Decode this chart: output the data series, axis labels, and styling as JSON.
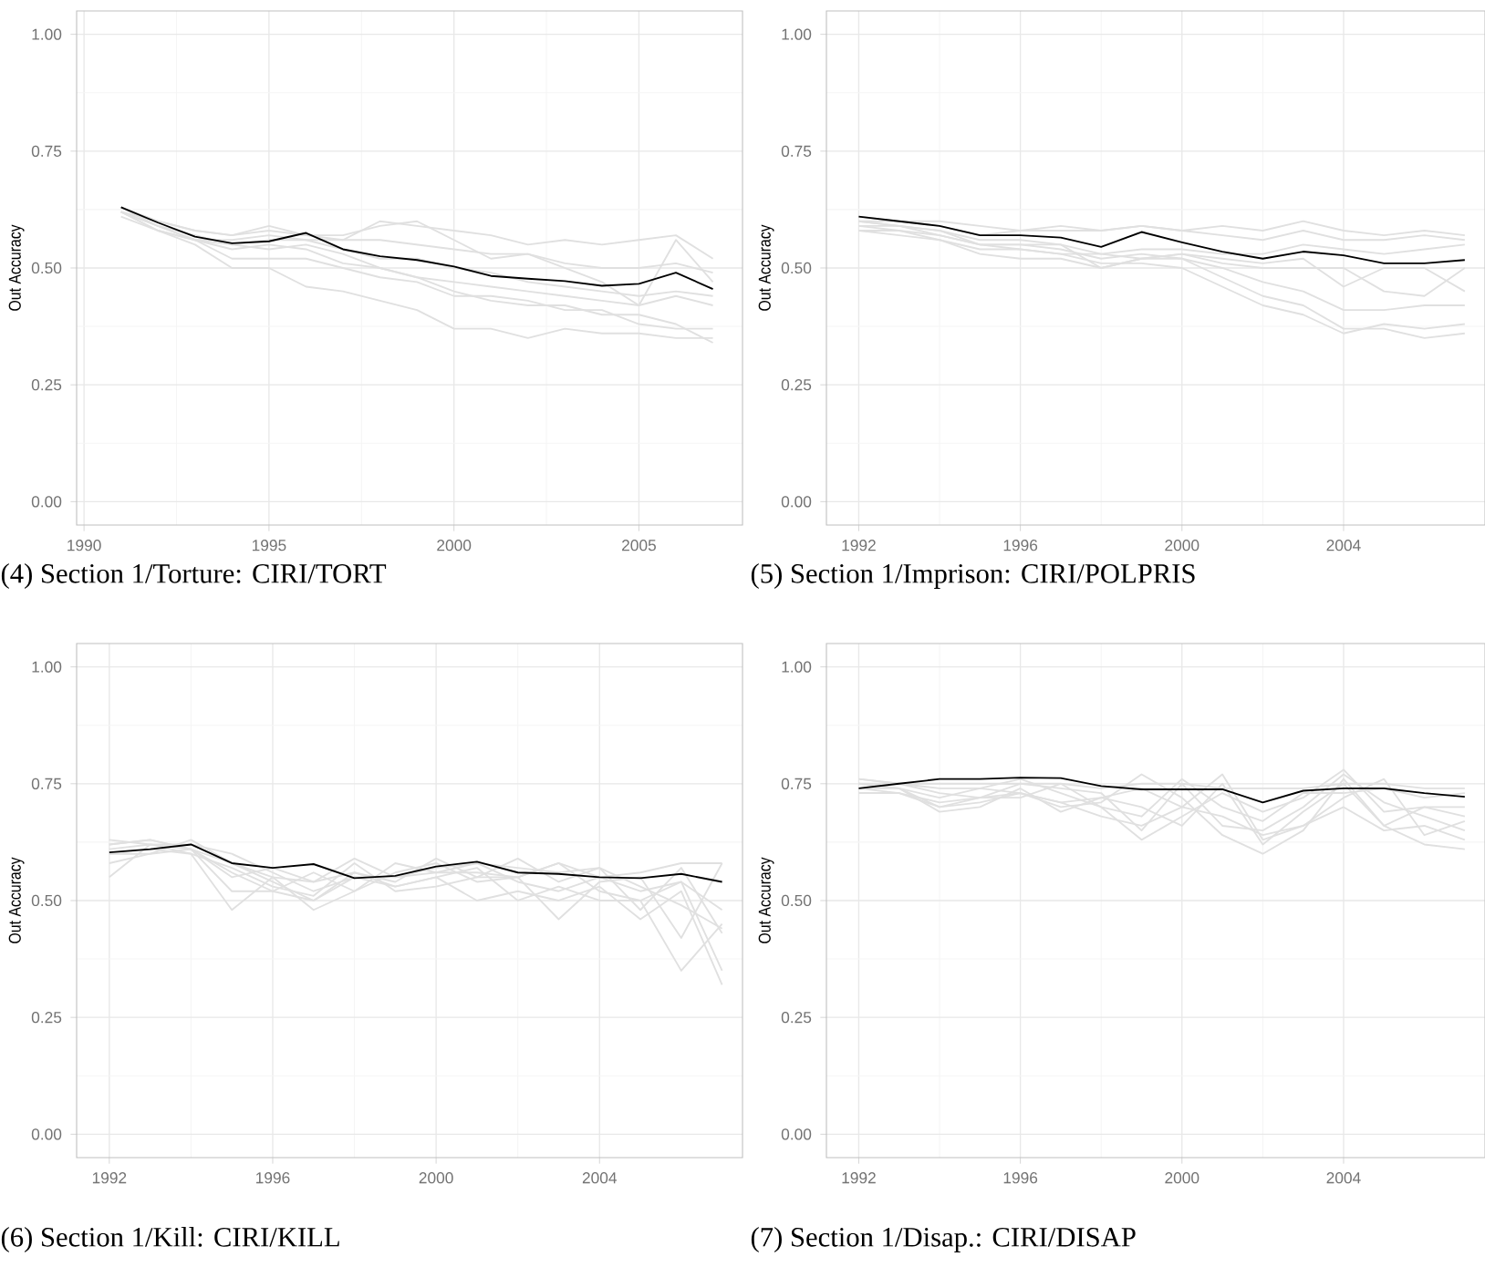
{
  "chart_data": [
    {
      "type": "line",
      "title": "(4) Section 1/Torture: CIRI/TORT",
      "ylabel": "Out Accuracy",
      "grid": true,
      "xlim": [
        1989.8,
        2007.8
      ],
      "ylim": [
        -0.05,
        1.05
      ],
      "xticks": [
        1990,
        1995,
        2000,
        2005
      ],
      "yticks": [
        {
          "value": 0,
          "label": "0.00"
        },
        {
          "value": 0.25,
          "label": "0.25"
        },
        {
          "value": 0.5,
          "label": "0.50"
        },
        {
          "value": 0.75,
          "label": "0.75"
        },
        {
          "value": 1,
          "label": "1.00"
        }
      ],
      "x": [
        1991,
        1992,
        1993,
        1994,
        1995,
        1996,
        1997,
        1998,
        1999,
        2000,
        2001,
        2002,
        2003,
        2004,
        2005,
        2006,
        2007
      ],
      "series": [
        {
          "color": "#e0e0e0",
          "values": [
            0.62,
            0.6,
            0.58,
            0.57,
            0.58,
            0.57,
            0.56,
            0.6,
            0.59,
            0.58,
            0.57,
            0.55,
            0.56,
            0.55,
            0.56,
            0.57,
            0.52
          ]
        },
        {
          "color": "#e0e0e0",
          "values": [
            0.63,
            0.59,
            0.57,
            0.55,
            0.54,
            0.55,
            0.53,
            0.5,
            0.48,
            0.45,
            0.43,
            0.42,
            0.42,
            0.4,
            0.4,
            0.38,
            0.34
          ]
        },
        {
          "color": "#e0e0e0",
          "values": [
            0.61,
            0.58,
            0.55,
            0.5,
            0.5,
            0.46,
            0.45,
            0.43,
            0.41,
            0.37,
            0.37,
            0.35,
            0.37,
            0.36,
            0.36,
            0.35,
            0.35
          ]
        },
        {
          "color": "#e0e0e0",
          "values": [
            0.62,
            0.59,
            0.56,
            0.56,
            0.57,
            0.56,
            0.56,
            0.56,
            0.55,
            0.54,
            0.53,
            0.53,
            0.51,
            0.5,
            0.5,
            0.51,
            0.49
          ]
        },
        {
          "color": "#e0e0e0",
          "values": [
            0.62,
            0.58,
            0.56,
            0.52,
            0.52,
            0.52,
            0.5,
            0.48,
            0.47,
            0.44,
            0.44,
            0.43,
            0.41,
            0.41,
            0.38,
            0.37,
            0.37
          ]
        },
        {
          "color": "#e0e0e0",
          "values": [
            0.63,
            0.6,
            0.58,
            0.57,
            0.59,
            0.57,
            0.57,
            0.59,
            0.6,
            0.56,
            0.52,
            0.53,
            0.5,
            0.47,
            0.42,
            0.56,
            0.47
          ]
        },
        {
          "color": "#e0e0e0",
          "values": [
            0.62,
            0.58,
            0.56,
            0.54,
            0.55,
            0.54,
            0.51,
            0.5,
            0.48,
            0.47,
            0.46,
            0.45,
            0.44,
            0.43,
            0.42,
            0.44,
            0.42
          ]
        },
        {
          "color": "#e0e0e0",
          "values": [
            0.62,
            0.59,
            0.56,
            0.55,
            0.56,
            0.56,
            0.54,
            0.52,
            0.52,
            0.5,
            0.49,
            0.47,
            0.46,
            0.45,
            0.44,
            0.45,
            0.44
          ]
        },
        {
          "color": "#000000",
          "values": [
            0.63,
            0.597,
            0.567,
            0.553,
            0.557,
            0.575,
            0.54,
            0.525,
            0.517,
            0.503,
            0.483,
            0.477,
            0.472,
            0.462,
            0.466,
            0.49,
            0.455
          ]
        }
      ]
    },
    {
      "type": "line",
      "title": "(5) Section 1/Imprison: CIRI/POLPRIS",
      "ylabel": "Out Accuracy",
      "grid": true,
      "xlim": [
        1991.2,
        2007.5
      ],
      "ylim": [
        -0.05,
        1.05
      ],
      "xticks": [
        1992,
        1996,
        2000,
        2004
      ],
      "yticks": [
        {
          "value": 0,
          "label": "0.00"
        },
        {
          "value": 0.25,
          "label": "0.25"
        },
        {
          "value": 0.5,
          "label": "0.50"
        },
        {
          "value": 0.75,
          "label": "0.75"
        },
        {
          "value": 1,
          "label": "1.00"
        }
      ],
      "x": [
        1992,
        1993,
        1994,
        1995,
        1996,
        1997,
        1998,
        1999,
        2000,
        2001,
        2002,
        2003,
        2004,
        2005,
        2006,
        2007
      ],
      "series": [
        {
          "color": "#e0e0e0",
          "values": [
            0.6,
            0.6,
            0.6,
            0.59,
            0.58,
            0.58,
            0.58,
            0.59,
            0.58,
            0.59,
            0.58,
            0.6,
            0.58,
            0.57,
            0.58,
            0.57
          ]
        },
        {
          "color": "#e0e0e0",
          "values": [
            0.58,
            0.57,
            0.56,
            0.53,
            0.52,
            0.52,
            0.5,
            0.52,
            0.52,
            0.48,
            0.44,
            0.42,
            0.37,
            0.37,
            0.35,
            0.36
          ]
        },
        {
          "color": "#e0e0e0",
          "values": [
            0.59,
            0.59,
            0.57,
            0.55,
            0.54,
            0.53,
            0.51,
            0.51,
            0.5,
            0.46,
            0.42,
            0.4,
            0.36,
            0.38,
            0.37,
            0.38
          ]
        },
        {
          "color": "#e0e0e0",
          "values": [
            0.6,
            0.59,
            0.58,
            0.55,
            0.55,
            0.54,
            0.52,
            0.53,
            0.52,
            0.5,
            0.47,
            0.45,
            0.41,
            0.41,
            0.42,
            0.42
          ]
        },
        {
          "color": "#e0e0e0",
          "values": [
            0.59,
            0.58,
            0.57,
            0.55,
            0.55,
            0.55,
            0.5,
            0.52,
            0.53,
            0.52,
            0.51,
            0.52,
            0.46,
            0.5,
            0.5,
            0.45
          ]
        },
        {
          "color": "#e0e0e0",
          "values": [
            0.6,
            0.59,
            0.58,
            0.56,
            0.56,
            0.55,
            0.53,
            0.54,
            0.54,
            0.53,
            0.53,
            0.55,
            0.54,
            0.53,
            0.54,
            0.55
          ]
        },
        {
          "color": "#e0e0e0",
          "values": [
            0.58,
            0.58,
            0.56,
            0.54,
            0.54,
            0.53,
            0.53,
            0.52,
            0.53,
            0.51,
            0.5,
            0.5,
            0.5,
            0.45,
            0.44,
            0.5
          ]
        },
        {
          "color": "#e0e0e0",
          "values": [
            0.61,
            0.6,
            0.59,
            0.57,
            0.58,
            0.59,
            0.58,
            0.59,
            0.58,
            0.57,
            0.56,
            0.58,
            0.56,
            0.56,
            0.57,
            0.56
          ]
        },
        {
          "color": "#000000",
          "values": [
            0.61,
            0.6,
            0.59,
            0.57,
            0.57,
            0.565,
            0.545,
            0.577,
            0.555,
            0.535,
            0.52,
            0.535,
            0.527,
            0.51,
            0.51,
            0.517
          ]
        }
      ]
    },
    {
      "type": "line",
      "title": "(6) Section 1/Kill: CIRI/KILL",
      "ylabel": "Out Accuracy",
      "grid": true,
      "xlim": [
        1991.2,
        2007.5
      ],
      "ylim": [
        -0.05,
        1.05
      ],
      "xticks": [
        1992,
        1996,
        2000,
        2004
      ],
      "yticks": [
        {
          "value": 0,
          "label": "0.00"
        },
        {
          "value": 0.25,
          "label": "0.25"
        },
        {
          "value": 0.5,
          "label": "0.50"
        },
        {
          "value": 0.75,
          "label": "0.75"
        },
        {
          "value": 1,
          "label": "1.00"
        }
      ],
      "x": [
        1992,
        1993,
        1994,
        1995,
        1996,
        1997,
        1998,
        1999,
        2000,
        2001,
        2002,
        2003,
        2004,
        2005,
        2006,
        2007
      ],
      "series": [
        {
          "color": "#e0e0e0",
          "values": [
            0.55,
            0.62,
            0.61,
            0.52,
            0.52,
            0.5,
            0.55,
            0.53,
            0.55,
            0.5,
            0.52,
            0.5,
            0.53,
            0.46,
            0.52,
            0.32
          ]
        },
        {
          "color": "#e0e0e0",
          "values": [
            0.62,
            0.63,
            0.61,
            0.58,
            0.55,
            0.48,
            0.52,
            0.58,
            0.56,
            0.56,
            0.55,
            0.58,
            0.52,
            0.5,
            0.35,
            0.45
          ]
        },
        {
          "color": "#e0e0e0",
          "values": [
            0.6,
            0.61,
            0.6,
            0.48,
            0.55,
            0.54,
            0.56,
            0.54,
            0.59,
            0.55,
            0.55,
            0.46,
            0.54,
            0.55,
            0.42,
            0.58
          ]
        },
        {
          "color": "#e0e0e0",
          "values": [
            0.63,
            0.62,
            0.62,
            0.6,
            0.56,
            0.52,
            0.55,
            0.55,
            0.57,
            0.58,
            0.57,
            0.56,
            0.57,
            0.48,
            0.57,
            0.43
          ]
        },
        {
          "color": "#e0e0e0",
          "values": [
            0.58,
            0.6,
            0.63,
            0.58,
            0.54,
            0.5,
            0.56,
            0.53,
            0.55,
            0.57,
            0.5,
            0.53,
            0.5,
            0.5,
            0.54,
            0.35
          ]
        },
        {
          "color": "#e0e0e0",
          "values": [
            0.62,
            0.63,
            0.61,
            0.56,
            0.52,
            0.56,
            0.52,
            0.56,
            0.58,
            0.54,
            0.55,
            0.58,
            0.55,
            0.52,
            0.54,
            0.48
          ]
        },
        {
          "color": "#e0e0e0",
          "values": [
            0.6,
            0.6,
            0.61,
            0.55,
            0.57,
            0.54,
            0.59,
            0.55,
            0.56,
            0.58,
            0.54,
            0.52,
            0.55,
            0.56,
            0.58,
            0.58
          ]
        },
        {
          "color": "#e0e0e0",
          "values": [
            0.61,
            0.62,
            0.6,
            0.57,
            0.53,
            0.51,
            0.58,
            0.52,
            0.53,
            0.55,
            0.59,
            0.54,
            0.57,
            0.53,
            0.49,
            0.44
          ]
        },
        {
          "color": "#000000",
          "values": [
            0.603,
            0.61,
            0.62,
            0.58,
            0.57,
            0.578,
            0.548,
            0.553,
            0.573,
            0.583,
            0.56,
            0.557,
            0.55,
            0.548,
            0.557,
            0.54
          ]
        }
      ]
    },
    {
      "type": "line",
      "title": "(7) Section 1/Disap.: CIRI/DISAP",
      "ylabel": "Out Accuracy",
      "grid": true,
      "xlim": [
        1991.2,
        2007.5
      ],
      "ylim": [
        -0.05,
        1.05
      ],
      "xticks": [
        1992,
        1996,
        2000,
        2004
      ],
      "yticks": [
        {
          "value": 0,
          "label": "0.00"
        },
        {
          "value": 0.25,
          "label": "0.25"
        },
        {
          "value": 0.5,
          "label": "0.50"
        },
        {
          "value": 0.75,
          "label": "0.75"
        },
        {
          "value": 1,
          "label": "1.00"
        }
      ],
      "x": [
        1992,
        1993,
        1994,
        1995,
        1996,
        1997,
        1998,
        1999,
        2000,
        2001,
        2002,
        2003,
        2004,
        2005,
        2006,
        2007
      ],
      "series": [
        {
          "color": "#e0e0e0",
          "values": [
            0.75,
            0.74,
            0.7,
            0.71,
            0.73,
            0.71,
            0.72,
            0.7,
            0.66,
            0.75,
            0.62,
            0.69,
            0.75,
            0.66,
            0.62,
            0.61
          ]
        },
        {
          "color": "#e0e0e0",
          "values": [
            0.76,
            0.75,
            0.73,
            0.72,
            0.75,
            0.74,
            0.73,
            0.65,
            0.75,
            0.66,
            0.65,
            0.7,
            0.77,
            0.71,
            0.68,
            0.65
          ]
        },
        {
          "color": "#e0e0e0",
          "values": [
            0.74,
            0.74,
            0.72,
            0.74,
            0.73,
            0.7,
            0.71,
            0.77,
            0.72,
            0.64,
            0.6,
            0.65,
            0.76,
            0.66,
            0.7,
            0.68
          ]
        },
        {
          "color": "#e0e0e0",
          "values": [
            0.75,
            0.74,
            0.69,
            0.7,
            0.74,
            0.69,
            0.72,
            0.74,
            0.7,
            0.77,
            0.63,
            0.66,
            0.72,
            0.76,
            0.64,
            0.67
          ]
        },
        {
          "color": "#e0e0e0",
          "values": [
            0.76,
            0.75,
            0.74,
            0.74,
            0.76,
            0.73,
            0.7,
            0.63,
            0.68,
            0.73,
            0.69,
            0.72,
            0.78,
            0.69,
            0.7,
            0.7
          ]
        },
        {
          "color": "#e0e0e0",
          "values": [
            0.74,
            0.73,
            0.7,
            0.72,
            0.72,
            0.75,
            0.7,
            0.68,
            0.76,
            0.7,
            0.67,
            0.73,
            0.73,
            0.74,
            0.72,
            0.73
          ]
        },
        {
          "color": "#e0e0e0",
          "values": [
            0.75,
            0.75,
            0.75,
            0.75,
            0.75,
            0.75,
            0.74,
            0.75,
            0.75,
            0.74,
            0.74,
            0.74,
            0.75,
            0.75,
            0.74,
            0.74
          ]
        },
        {
          "color": "#e0e0e0",
          "values": [
            0.73,
            0.73,
            0.71,
            0.72,
            0.73,
            0.71,
            0.68,
            0.66,
            0.7,
            0.68,
            0.64,
            0.66,
            0.7,
            0.65,
            0.66,
            0.63
          ]
        },
        {
          "color": "#000000",
          "values": [
            0.74,
            0.75,
            0.76,
            0.76,
            0.763,
            0.762,
            0.745,
            0.738,
            0.738,
            0.738,
            0.71,
            0.735,
            0.74,
            0.74,
            0.73,
            0.722
          ]
        }
      ]
    }
  ]
}
